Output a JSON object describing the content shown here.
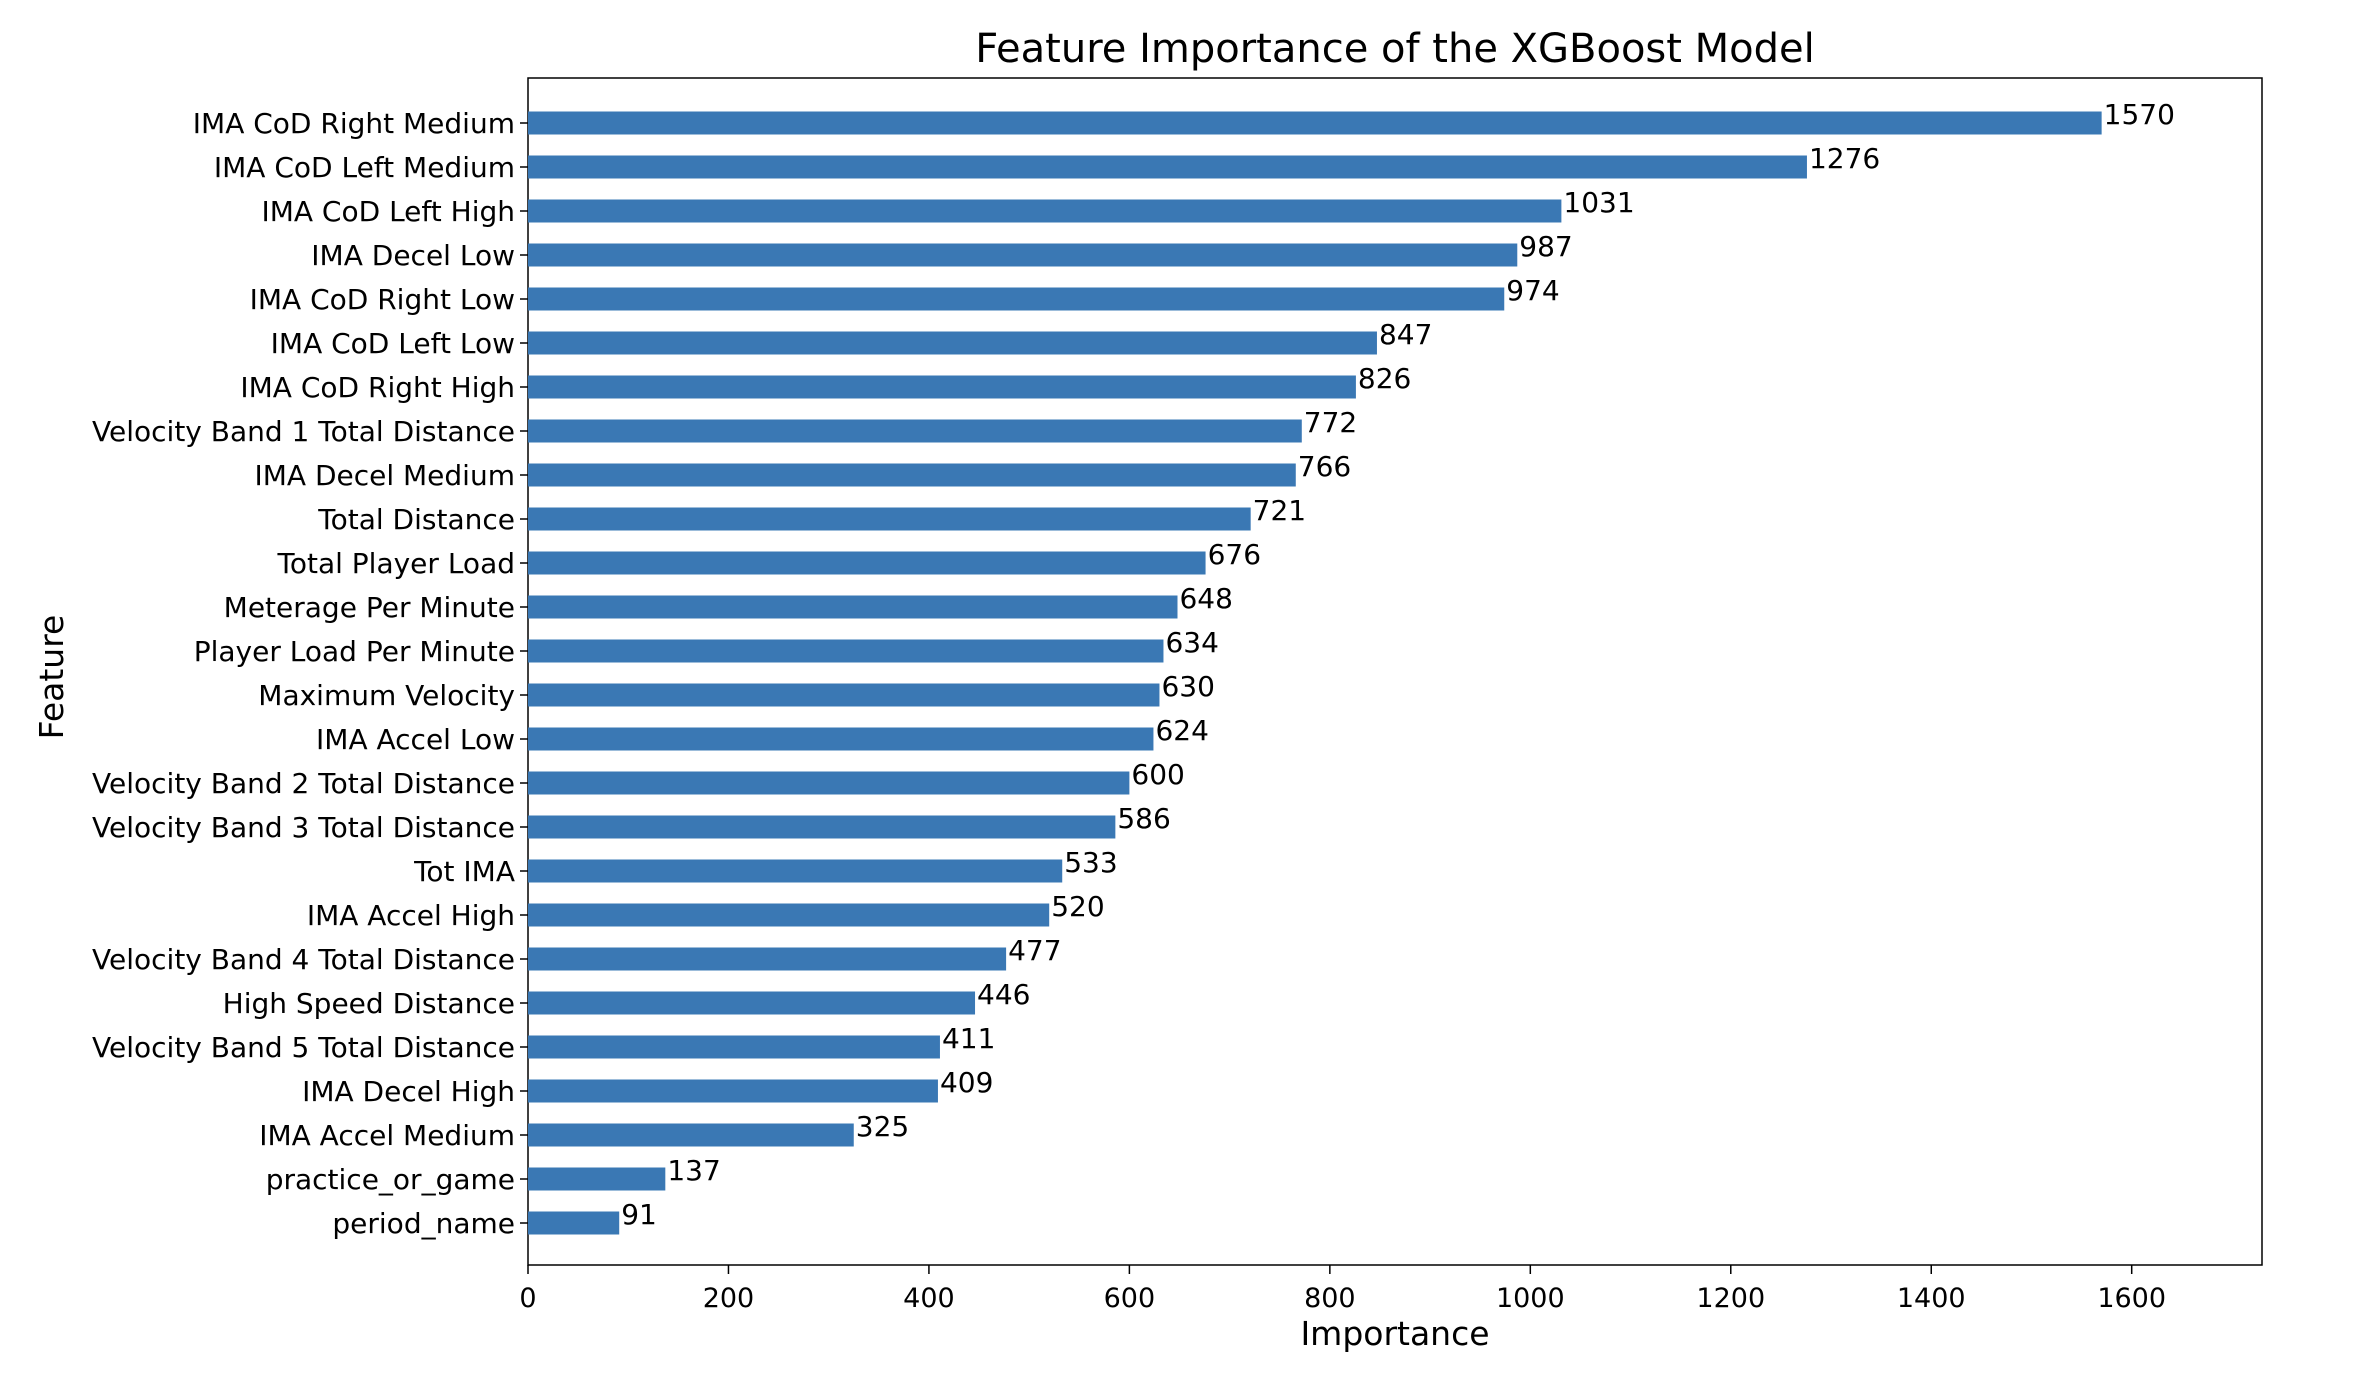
{
  "chart_data": {
    "type": "bar",
    "orientation": "horizontal",
    "title": "Feature Importance of the XGBoost Model",
    "xlabel": "Importance",
    "ylabel": "Feature",
    "xlim": [
      0,
      1730
    ],
    "xticks": [
      0,
      200,
      400,
      600,
      800,
      1000,
      1200,
      1400,
      1600
    ],
    "grid": false,
    "bar_color": "#3a78b4",
    "categories": [
      "IMA CoD Right Medium",
      "IMA CoD Left Medium",
      "IMA CoD Left High",
      "IMA Decel Low",
      "IMA CoD Right Low",
      "IMA CoD Left Low",
      "IMA CoD Right High",
      "Velocity Band 1 Total Distance",
      "IMA Decel Medium",
      "Total Distance",
      "Total Player Load",
      "Meterage Per Minute",
      "Player Load Per Minute",
      "Maximum Velocity",
      "IMA Accel Low",
      "Velocity Band 2 Total Distance",
      "Velocity Band 3 Total Distance",
      "Tot IMA",
      "IMA Accel High",
      "Velocity Band 4 Total Distance",
      "High Speed Distance",
      "Velocity Band 5 Total Distance",
      "IMA Decel High",
      "IMA Accel Medium",
      "practice_or_game",
      "period_name"
    ],
    "values": [
      1570,
      1276,
      1031,
      987,
      974,
      847,
      826,
      772,
      766,
      721,
      676,
      648,
      634,
      630,
      624,
      600,
      586,
      533,
      520,
      477,
      446,
      411,
      409,
      325,
      137,
      91
    ]
  }
}
